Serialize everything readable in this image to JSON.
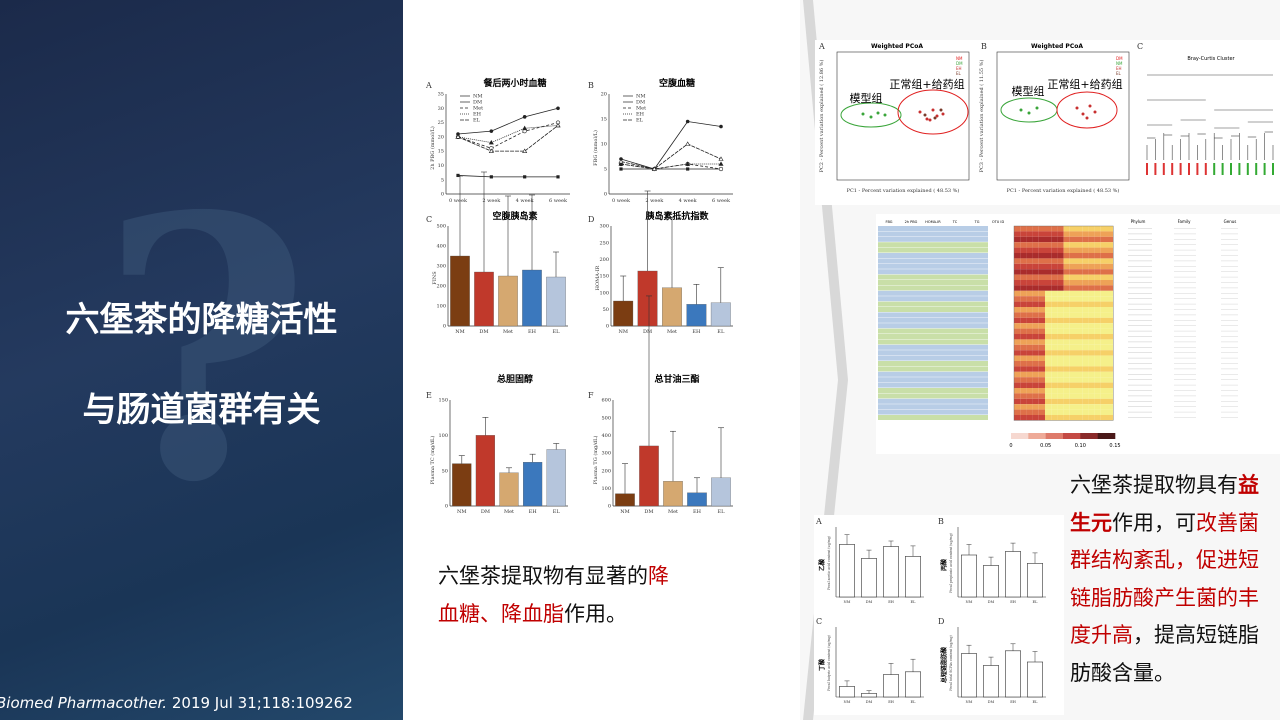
{
  "left": {
    "title_line1": "六堡茶的降糖活性",
    "title_line2": "与肠道菌群有关",
    "citation_journal": "Biomed Pharmacother.",
    "citation_rest": " 2019 Jul 31;118:109262"
  },
  "figA": {
    "letter": "A",
    "title": "餐后两小时血糖",
    "ylabel": "2h PBG (mmol/L)",
    "legend": [
      "NM",
      "DM",
      "Met",
      "EH",
      "EL"
    ]
  },
  "figB": {
    "letter": "B",
    "title": "空腹血糖",
    "ylabel": "FBG (mmol/L)",
    "legend": [
      "NM",
      "DM",
      "Met",
      "EH",
      "EL"
    ]
  },
  "time_axis": [
    "0 week",
    "2 week",
    "4 week",
    "6 week"
  ],
  "groups": [
    "NM",
    "DM",
    "Met",
    "EH",
    "EL"
  ],
  "figC": {
    "letter": "C",
    "title": "空腹胰岛素",
    "ylabel": "FINS"
  },
  "figD": {
    "letter": "D",
    "title": "胰岛素抵抗指数",
    "ylabel": "HOMA-IR"
  },
  "figE": {
    "letter": "E",
    "title": "总胆固醇",
    "ylabel": "Plasma TC (mg/dL)"
  },
  "figF": {
    "letter": "F",
    "title": "总甘油三酯",
    "ylabel": "Plasma TG (mg/dL)"
  },
  "text_left": {
    "line1_a": "六堡茶提取物有显著的",
    "line1_b": "降",
    "line2_a": "血糖、降血脂",
    "line2_b": "作用。"
  },
  "pcoa1": {
    "letter": "A",
    "title": "Weighted PCoA",
    "group1": "模型组",
    "group2": "正常组+给药组",
    "xlabel": "PC1 - Percent variation explained ( 48.53 %)",
    "ylabel": "PC2 - Percent variation explained ( 12.86 %)",
    "legend": [
      "NM",
      "DM",
      "EH",
      "EL"
    ]
  },
  "pcoa2": {
    "letter": "B",
    "title": "Weighted PCoA",
    "group1": "模型组",
    "group2": "正常组+给药组",
    "xlabel": "PC1 - Percent variation explained ( 48.53 %)",
    "ylabel": "PC3 - Percent variation explained ( 11.55 %)",
    "legend": [
      "DM",
      "NM",
      "EH",
      "EL"
    ]
  },
  "tree": {
    "letter": "C",
    "title": "Bray-Curtis Cluster"
  },
  "heatmap": {
    "cols": [
      "FBG",
      "2h PBG",
      "HOMA-IR",
      "TC",
      "TG"
    ],
    "otu_header": "OTU ID",
    "right_headers": [
      "Phylum",
      "Family",
      "Genus"
    ],
    "scale": [
      "0",
      "0.05",
      "0.10",
      "0.15"
    ]
  },
  "scfa": [
    {
      "letter": "A",
      "name": "乙酸",
      "ylabel": "Fecal acetic acid content (ug/mg)"
    },
    {
      "letter": "B",
      "name": "丙酸",
      "ylabel": "Fecal propionic acid content (ug/mg)"
    },
    {
      "letter": "C",
      "name": "丁酸",
      "ylabel": "Fecal butyric acid content (ug/mg)"
    },
    {
      "letter": "D",
      "name": "总短链脂肪酸",
      "ylabel": "Fecal total SCFAs content (ug/mg)"
    }
  ],
  "scfa_groups": [
    "NM",
    "DM",
    "EH",
    "EL"
  ],
  "text_right": {
    "l1_a": "六堡茶提取物具有",
    "l1_b": "益",
    "l2_a": "生元",
    "l2_b": "作用，可",
    "l2_c": "改善菌",
    "l3": "群结构紊乱，促进短",
    "l4": "链脂肪酸产生菌的丰",
    "l5_a": "度升高",
    "l5_b": "，提高短链脂",
    "l6": "肪酸含量。"
  },
  "chart_data": [
    {
      "type": "line",
      "title": "餐后两小时血糖",
      "ylabel": "2h PBG (mmol/L)",
      "ylim": [
        0,
        35
      ],
      "x": [
        "0 week",
        "2 week",
        "4 week",
        "6 week"
      ],
      "series": [
        {
          "name": "NM",
          "values": [
            6.5,
            6,
            6,
            6
          ]
        },
        {
          "name": "DM",
          "values": [
            21,
            22,
            27,
            30
          ]
        },
        {
          "name": "Met",
          "values": [
            20,
            16,
            22,
            25
          ]
        },
        {
          "name": "EH",
          "values": [
            20,
            18,
            23,
            24
          ]
        },
        {
          "name": "EL",
          "values": [
            20,
            15,
            15,
            24
          ]
        }
      ]
    },
    {
      "type": "line",
      "title": "空腹血糖",
      "ylabel": "FBG (mmol/L)",
      "ylim": [
        0,
        20
      ],
      "x": [
        "0 week",
        "2 week",
        "4 week",
        "6 week"
      ],
      "series": [
        {
          "name": "NM",
          "values": [
            5,
            5,
            5,
            5
          ]
        },
        {
          "name": "DM",
          "values": [
            7,
            5,
            14.5,
            13.5
          ]
        },
        {
          "name": "Met",
          "values": [
            6,
            5,
            6,
            5
          ]
        },
        {
          "name": "EH",
          "values": [
            6,
            5,
            6,
            6
          ]
        },
        {
          "name": "EL",
          "values": [
            6.5,
            5,
            10,
            7
          ]
        }
      ]
    },
    {
      "type": "bar",
      "title": "空腹胰岛素",
      "ylabel": "FINS",
      "ylim": [
        0,
        500
      ],
      "categories": [
        "NM",
        "DM",
        "Met",
        "EH",
        "EL"
      ],
      "values": [
        350,
        270,
        250,
        280,
        245
      ]
    },
    {
      "type": "bar",
      "title": "胰岛素抵抗指数",
      "ylabel": "HOMA-IR",
      "ylim": [
        0,
        300
      ],
      "categories": [
        "NM",
        "DM",
        "Met",
        "EH",
        "EL"
      ],
      "values": [
        75,
        165,
        115,
        65,
        70
      ]
    },
    {
      "type": "bar",
      "title": "总胆固醇",
      "ylabel": "Plasma TC (mg/dL)",
      "ylim": [
        0,
        150
      ],
      "categories": [
        "NM",
        "DM",
        "Met",
        "EH",
        "EL"
      ],
      "values": [
        60,
        100,
        47,
        62,
        80
      ]
    },
    {
      "type": "bar",
      "title": "总甘油三酯",
      "ylabel": "Plasma TG (mg/dL)",
      "ylim": [
        0,
        600
      ],
      "categories": [
        "NM",
        "DM",
        "Met",
        "EH",
        "EL"
      ],
      "values": [
        70,
        340,
        140,
        75,
        160
      ]
    }
  ]
}
